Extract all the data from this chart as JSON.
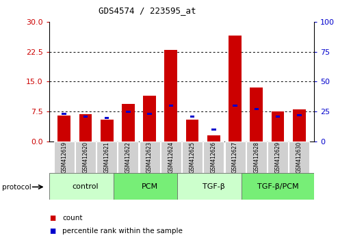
{
  "title": "GDS4574 / 223595_at",
  "samples": [
    "GSM412619",
    "GSM412620",
    "GSM412621",
    "GSM412622",
    "GSM412623",
    "GSM412624",
    "GSM412625",
    "GSM412626",
    "GSM412627",
    "GSM412628",
    "GSM412629",
    "GSM412630"
  ],
  "count_values": [
    6.5,
    6.8,
    5.5,
    9.5,
    11.5,
    23.0,
    5.5,
    1.5,
    26.5,
    13.5,
    7.5,
    8.0
  ],
  "percentile_values": [
    23.0,
    21.0,
    20.0,
    25.0,
    23.0,
    30.0,
    21.0,
    10.0,
    30.0,
    27.0,
    21.0,
    22.0
  ],
  "left_ylim": [
    0,
    30
  ],
  "right_ylim": [
    0,
    100
  ],
  "left_yticks": [
    0,
    7.5,
    15,
    22.5,
    30
  ],
  "right_yticks": [
    0,
    25,
    50,
    75,
    100
  ],
  "bar_color": "#cc0000",
  "percentile_color": "#0000cc",
  "bar_width": 0.6,
  "groups": [
    {
      "label": "control",
      "start": 0,
      "end": 3,
      "color": "#ccffcc"
    },
    {
      "label": "PCM",
      "start": 3,
      "end": 6,
      "color": "#77ee77"
    },
    {
      "label": "TGF-β",
      "start": 6,
      "end": 9,
      "color": "#ccffcc"
    },
    {
      "label": "TGF-β/PCM",
      "start": 9,
      "end": 12,
      "color": "#77ee77"
    }
  ],
  "legend_items": [
    {
      "label": "count",
      "color": "#cc0000"
    },
    {
      "label": "percentile rank within the sample",
      "color": "#0000cc"
    }
  ],
  "protocol_label": "protocol",
  "left_tick_color": "#cc0000",
  "right_tick_color": "#0000cc"
}
